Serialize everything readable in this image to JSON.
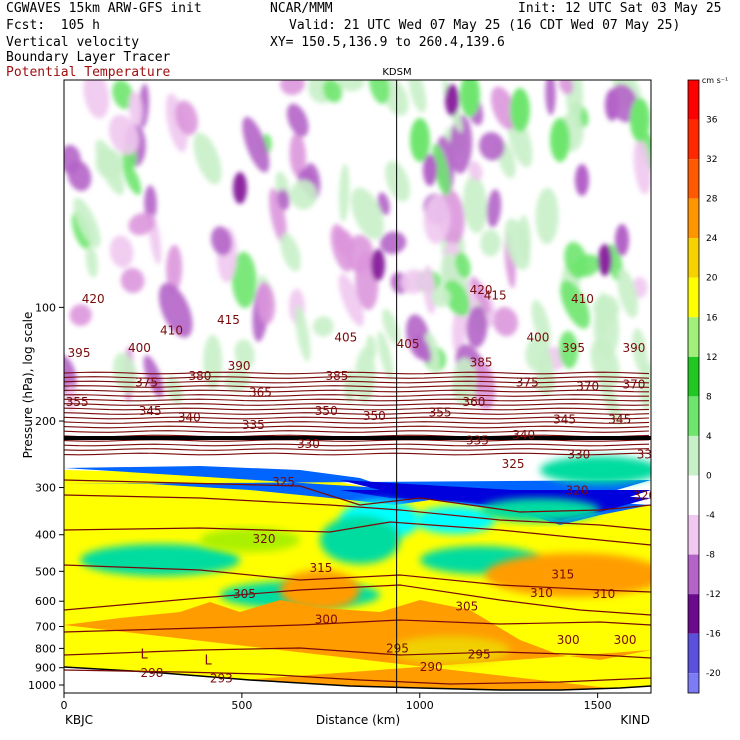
{
  "header": {
    "model_line": "CGWAVES 15km ARW-GFS init",
    "center_line": "NCAR/MMM",
    "init_line": "Init: 12 UTC Sat 03 May 25",
    "fcst_line": "Fcst:  105 h",
    "valid_line": "Valid: 21 UTC Wed 07 May 25 (16 CDT Wed 07 May 25)",
    "field1": "Vertical velocity",
    "field2": "Boundary Layer Tracer",
    "field3": "Potential Temperature",
    "xy_line": "XY= 150.5,136.9 to 260.4,139.6"
  },
  "colors": {
    "header_blue": "#0000c8",
    "theta_contour": "#7a0a0a",
    "pos_scale": [
      "#ffffff",
      "#c8f0c8",
      "#6ee66e",
      "#22c822",
      "#a0f07a",
      "#ffff00",
      "#f0d000",
      "#ff9c00",
      "#ff7000",
      "#ff4000",
      "#ff0000"
    ],
    "neg_scale": [
      "#f0c8f0",
      "#dc96dc",
      "#b464c8",
      "#8c28a0",
      "#6a0a8c",
      "#5a50dc",
      "#7c7cf5"
    ],
    "tracer_colors": [
      "#ffff00",
      "#aaf000",
      "#00dca0",
      "#00ffff",
      "#0064ff",
      "#0000dc",
      "#2040a0"
    ]
  },
  "chart_data": {
    "type": "heatmap",
    "title": "KDSM",
    "xlabel": "Distance (km)",
    "ylabel": "Pressure (hPa), log scale",
    "y_scale": "log",
    "xlim": [
      0,
      1650
    ],
    "ylim": [
      1050,
      25
    ],
    "x_ticks": [
      0,
      500,
      1000,
      1500
    ],
    "y_ticks": [
      100,
      200,
      300,
      400,
      500,
      600,
      700,
      800,
      900,
      1000
    ],
    "marker_line": {
      "label": "KDSM",
      "x": 935
    },
    "endpoints": {
      "left": "KBJC",
      "right": "KIND"
    },
    "colorbar": {
      "unit": "cm s⁻¹",
      "tick_values": [
        36,
        32,
        28,
        24,
        20,
        16,
        12,
        8,
        4,
        0,
        -4,
        -8,
        -12,
        -16,
        -20
      ],
      "range": [
        -22,
        40
      ]
    },
    "theta_contours": [
      {
        "level": 420,
        "label_positions": [
          [
            50,
            95
          ],
          [
            1140,
            90
          ]
        ]
      },
      {
        "level": 415,
        "label_positions": [
          [
            430,
            108
          ],
          [
            1180,
            93
          ]
        ]
      },
      {
        "level": 410,
        "label_positions": [
          [
            270,
            115
          ],
          [
            1425,
            95
          ]
        ]
      },
      {
        "level": 405,
        "label_positions": [
          [
            760,
            120
          ],
          [
            935,
            125
          ]
        ]
      },
      {
        "level": 400,
        "label_positions": [
          [
            180,
            128
          ],
          [
            1300,
            120
          ]
        ]
      },
      {
        "level": 395,
        "label_positions": [
          [
            10,
            132
          ],
          [
            1400,
            128
          ]
        ]
      },
      {
        "level": 390,
        "label_positions": [
          [
            460,
            143
          ],
          [
            1570,
            128
          ]
        ]
      },
      {
        "level": 385,
        "label_positions": [
          [
            735,
            152
          ],
          [
            1140,
            140
          ]
        ]
      },
      {
        "level": 380,
        "label_positions": [
          [
            350,
            152
          ]
        ]
      },
      {
        "level": 375,
        "label_positions": [
          [
            200,
            158
          ],
          [
            1270,
            158
          ]
        ]
      },
      {
        "level": 370,
        "label_positions": [
          [
            1440,
            162
          ],
          [
            1570,
            160
          ]
        ]
      },
      {
        "level": 365,
        "label_positions": [
          [
            520,
            168
          ]
        ]
      },
      {
        "level": 360,
        "label_positions": [
          [
            1120,
            178
          ]
        ]
      },
      {
        "level": 355,
        "label_positions": [
          [
            5,
            178
          ],
          [
            1025,
            190
          ]
        ]
      },
      {
        "level": 350,
        "label_positions": [
          [
            705,
            188
          ],
          [
            840,
            194
          ]
        ]
      },
      {
        "level": 345,
        "label_positions": [
          [
            210,
            188
          ],
          [
            1375,
            198
          ],
          [
            1530,
            198
          ]
        ]
      },
      {
        "level": 340,
        "label_positions": [
          [
            320,
            196
          ],
          [
            1260,
            218
          ]
        ]
      },
      {
        "level": 335,
        "label_positions": [
          [
            500,
            205
          ],
          [
            1130,
            225
          ]
        ]
      },
      {
        "level": 330,
        "label_positions": [
          [
            655,
            230
          ],
          [
            1415,
            245
          ],
          [
            1610,
            245
          ]
        ]
      },
      {
        "level": 325,
        "label_positions": [
          [
            585,
            290
          ],
          [
            1230,
            260
          ]
        ]
      },
      {
        "level": 320,
        "label_positions": [
          [
            530,
            410
          ],
          [
            1410,
            305
          ],
          [
            1600,
            315
          ]
        ]
      },
      {
        "level": 315,
        "label_positions": [
          [
            690,
            490
          ],
          [
            1370,
            510
          ]
        ]
      },
      {
        "level": 310,
        "label_positions": [
          [
            1310,
            570
          ],
          [
            1485,
            575
          ]
        ]
      },
      {
        "level": 305,
        "label_positions": [
          [
            475,
            575
          ],
          [
            1100,
            620
          ]
        ]
      },
      {
        "level": 300,
        "label_positions": [
          [
            705,
            670
          ],
          [
            1385,
            760
          ],
          [
            1545,
            760
          ]
        ]
      },
      {
        "level": 295,
        "label_positions": [
          [
            905,
            800
          ],
          [
            1135,
            830
          ]
        ]
      },
      {
        "level": 290,
        "label_positions": [
          [
            1000,
            895
          ]
        ]
      },
      {
        "level": 298,
        "label_positions": [
          [
            215,
            930
          ]
        ]
      },
      {
        "level": 293,
        "label_positions": [
          [
            410,
            960
          ]
        ]
      }
    ],
    "low_markers": [
      {
        "label": "L",
        "x": 215,
        "p": 830
      },
      {
        "label": "L",
        "x": 395,
        "p": 860
      }
    ]
  }
}
